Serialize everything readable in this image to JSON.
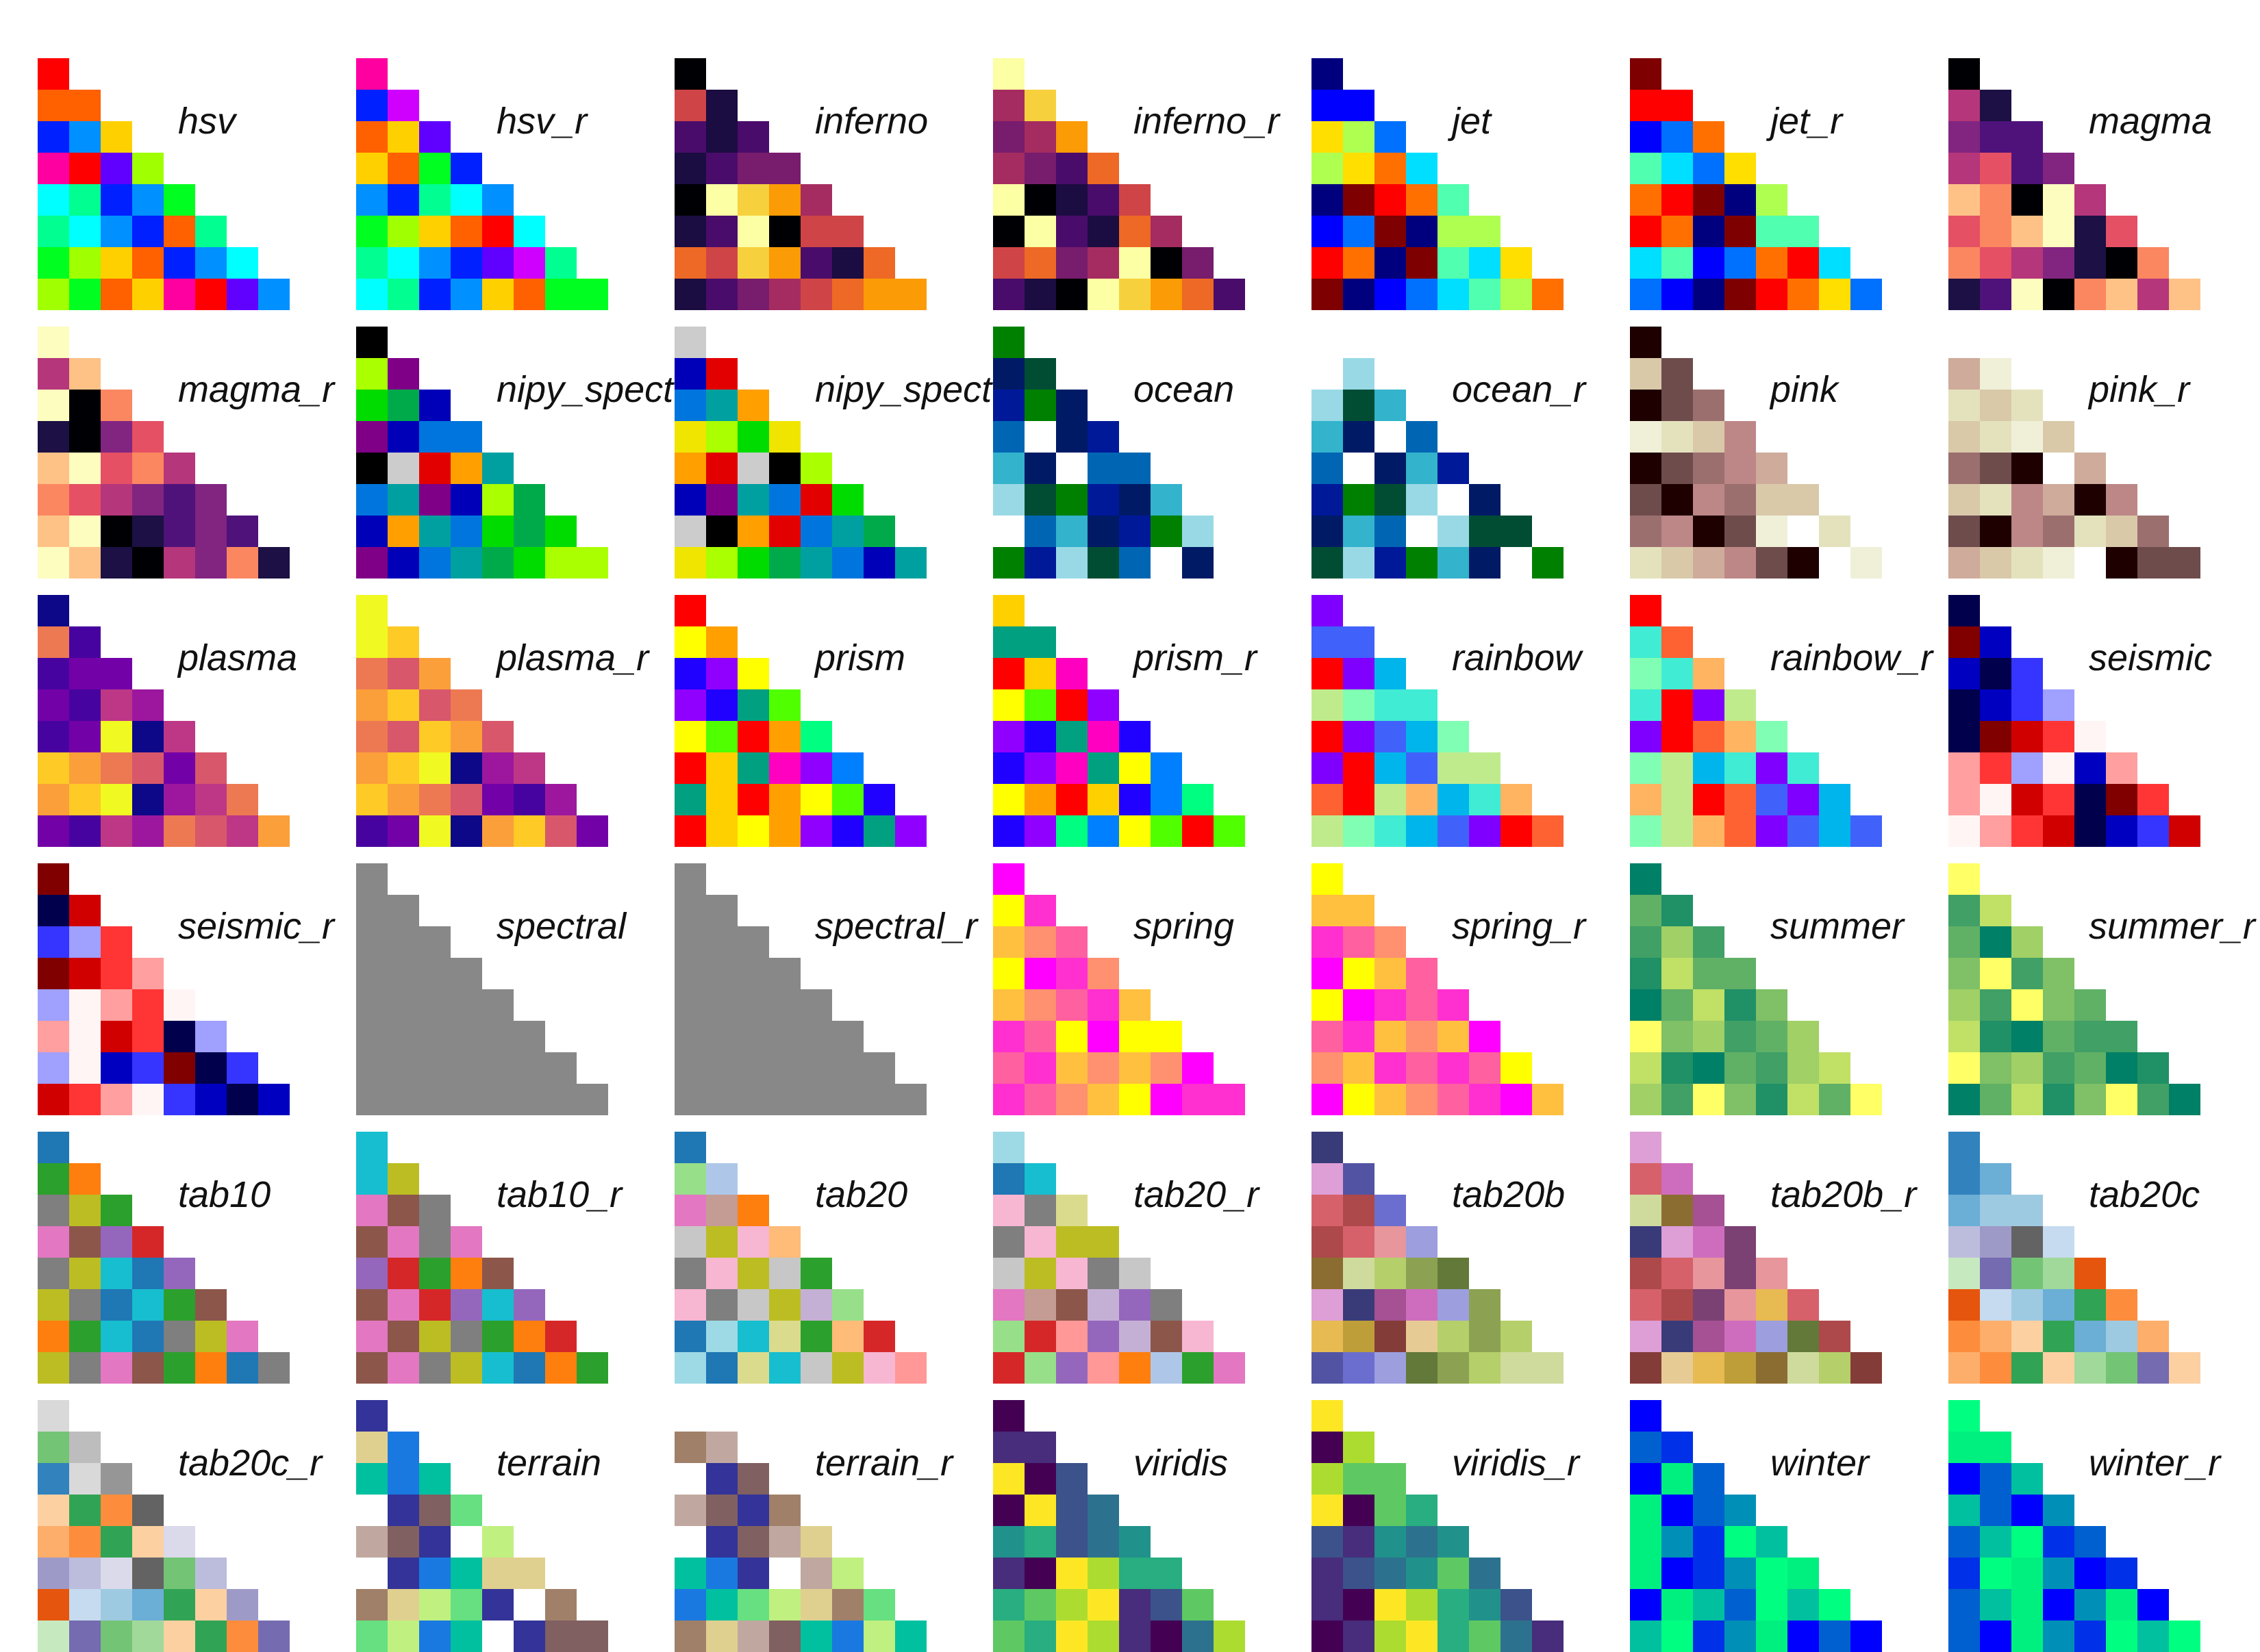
{
  "chart_data": {
    "type": "heatmap",
    "grid_rows": 6,
    "grid_cols": 7,
    "cells_per_triangle": 8,
    "colormaps": [
      "hsv",
      "hsv_r",
      "inferno",
      "inferno_r",
      "jet",
      "jet_r",
      "magma",
      "magma_r",
      "nipy_spectral",
      "nipy_spectral_r",
      "ocean",
      "ocean_r",
      "pink",
      "pink_r",
      "plasma",
      "plasma_r",
      "prism",
      "prism_r",
      "rainbow",
      "rainbow_r",
      "seismic",
      "seismic_r",
      "spectral",
      "spectral_r",
      "spring",
      "spring_r",
      "summer",
      "summer_r",
      "tab10",
      "tab10_r",
      "tab20",
      "tab20_r",
      "tab20b",
      "tab20b_r",
      "tab20c",
      "tab20c_r",
      "terrain",
      "terrain_r",
      "viridis",
      "viridis_r",
      "winter",
      "winter_r"
    ],
    "display_labels": [
      "hsv",
      "hsv_r",
      "inferno",
      "inferno_r",
      "jet",
      "jet_r",
      "magma",
      "magma_r",
      "nipy_spect",
      "nipy_spect",
      "ocean",
      "ocean_r",
      "pink",
      "pink_r",
      "plasma",
      "plasma_r",
      "prism",
      "prism_r",
      "rainbow",
      "rainbow_r",
      "seismic",
      "seismic_r",
      "spectral",
      "spectral_r",
      "spring",
      "spring_r",
      "summer",
      "summer_r",
      "tab10",
      "tab10_r",
      "tab20",
      "tab20_r",
      "tab20b",
      "tab20b_r",
      "tab20c",
      "tab20c_r",
      "terrain",
      "terrain_r",
      "viridis",
      "viridis_r",
      "winter",
      "winter_r"
    ],
    "palettes": {
      "hsv": [
        "#ff0000",
        "#ff6000",
        "#ffd000",
        "#a0ff00",
        "#00ff20",
        "#00ff90",
        "#00ffff",
        "#0090ff",
        "#0020ff",
        "#6000ff",
        "#d000ff",
        "#ff00a0"
      ],
      "inferno": [
        "#000004",
        "#1b0c41",
        "#4a0c6b",
        "#781c6d",
        "#a52c60",
        "#cf4446",
        "#ed6925",
        "#fb9b06",
        "#f7d13d",
        "#fcffa4"
      ],
      "jet": [
        "#00007f",
        "#0000ff",
        "#0070ff",
        "#00dfff",
        "#50ffaf",
        "#afff50",
        "#ffdf00",
        "#ff7000",
        "#ff0000",
        "#7f0000"
      ],
      "magma": [
        "#000004",
        "#1c1044",
        "#4f127b",
        "#812581",
        "#b5367a",
        "#e55064",
        "#fb8761",
        "#fec287",
        "#fcfdbf"
      ],
      "nipy_spectral": [
        "#000000",
        "#7f0086",
        "#0000b8",
        "#0075dd",
        "#00a0a0",
        "#00aa4a",
        "#00dc00",
        "#aaff00",
        "#f0e500",
        "#ffa000",
        "#e20000",
        "#cccccc"
      ],
      "ocean": [
        "#008000",
        "#004d33",
        "#001a66",
        "#001999",
        "#0066b3",
        "#33b3cc",
        "#99d9e6",
        "#ffffff"
      ],
      "pink": [
        "#1e0000",
        "#6e4c4c",
        "#9c6f6f",
        "#bd8787",
        "#cfab9b",
        "#d9c9a9",
        "#e4e2bd",
        "#f0f0d9",
        "#ffffff"
      ],
      "plasma": [
        "#0d0887",
        "#47039f",
        "#7301a8",
        "#9c179e",
        "#bd3786",
        "#d8576b",
        "#ed7953",
        "#fb9f3a",
        "#fdca26",
        "#f0f921"
      ],
      "prism": [
        "#ff0000",
        "#ffa000",
        "#ffff00",
        "#50ff00",
        "#00ff80",
        "#0080ff",
        "#2000ff",
        "#9000ff",
        "#ff00c0",
        "#00a080",
        "#ffd000"
      ],
      "rainbow": [
        "#8000ff",
        "#4062fa",
        "#00b5eb",
        "#40ecd4",
        "#80feb3",
        "#c0eb8d",
        "#ffb462",
        "#ff6232",
        "#ff0000"
      ],
      "seismic": [
        "#00004c",
        "#0000c0",
        "#3535ff",
        "#a0a0ff",
        "#fff5f5",
        "#ff9f9f",
        "#ff3535",
        "#d10000",
        "#800000"
      ],
      "spring": [
        "#ff00ff",
        "#ff30cf",
        "#ff60a0",
        "#ff9070",
        "#ffc040",
        "#ffff00"
      ],
      "summer": [
        "#008066",
        "#209066",
        "#40a066",
        "#60b066",
        "#80c066",
        "#a0d066",
        "#c0e066",
        "#ffff66"
      ],
      "tab10": [
        "#1f77b4",
        "#ff7f0e",
        "#2ca02c",
        "#d62728",
        "#9467bd",
        "#8c564b",
        "#e377c2",
        "#7f7f7f",
        "#bcbd22",
        "#17becf"
      ],
      "tab20": [
        "#1f77b4",
        "#aec7e8",
        "#ff7f0e",
        "#ffbb78",
        "#2ca02c",
        "#98df8a",
        "#d62728",
        "#ff9896",
        "#9467bd",
        "#c5b0d5",
        "#8c564b",
        "#c49c94",
        "#e377c2",
        "#f7b6d2",
        "#7f7f7f",
        "#c7c7c7",
        "#bcbd22",
        "#dbdb8d",
        "#17becf",
        "#9edae5"
      ],
      "tab20b": [
        "#393b79",
        "#5254a3",
        "#6b6ecf",
        "#9c9ede",
        "#637939",
        "#8ca252",
        "#b5cf6b",
        "#cedb9c",
        "#8c6d31",
        "#bd9e39",
        "#e7ba52",
        "#e7cb94",
        "#843c39",
        "#ad494a",
        "#d6616b",
        "#e7969c",
        "#7b4173",
        "#a55194",
        "#ce6dbd",
        "#de9ed6"
      ],
      "tab20c": [
        "#3182bd",
        "#6baed6",
        "#9ecae1",
        "#c6dbef",
        "#e6550d",
        "#fd8d3c",
        "#fdae6b",
        "#fdd0a2",
        "#31a354",
        "#74c476",
        "#a1d99b",
        "#c7e9c0",
        "#756bb1",
        "#9e9ac8",
        "#bcbddc",
        "#dadaeb",
        "#636363",
        "#969696",
        "#bdbdbd",
        "#d9d9d9"
      ],
      "terrain": [
        "#333399",
        "#1a79e1",
        "#00c0a0",
        "#66e080",
        "#c0f080",
        "#e0d090",
        "#a08068",
        "#806060",
        "#c0a8a0",
        "#ffffff"
      ],
      "viridis": [
        "#440154",
        "#472d7b",
        "#3b528b",
        "#2c728e",
        "#21918c",
        "#28ae80",
        "#5ec962",
        "#addc30",
        "#fde725"
      ],
      "winter": [
        "#0000ff",
        "#0030e7",
        "#0060cf",
        "#0090b7",
        "#00c09f",
        "#00f080",
        "#00ff80"
      ]
    }
  }
}
